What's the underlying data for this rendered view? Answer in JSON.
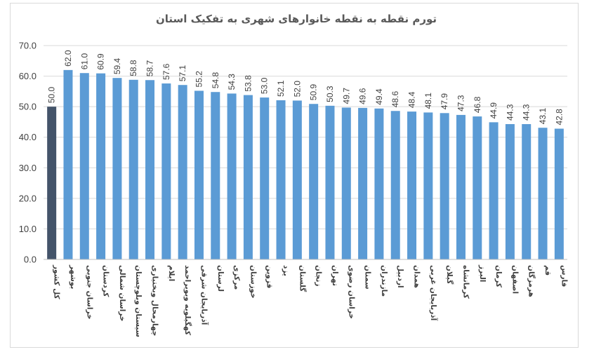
{
  "chart_data": {
    "type": "bar",
    "title": "تورم نقطه به نقطه خانوارهای شهری به تفکیک استان",
    "xlabel": "",
    "ylabel": "",
    "ylim": [
      0,
      70
    ],
    "yticks": [
      "0.0",
      "10.0",
      "20.0",
      "30.0",
      "40.0",
      "50.0",
      "60.0",
      "70.0"
    ],
    "grid": true,
    "legend": "none",
    "colors": {
      "highlight": "#44546a",
      "default": "#5b9bd5",
      "grid": "#d9d9d9"
    },
    "highlight_category": "کل کشور",
    "categories": [
      "کل کشور",
      "بوشهر",
      "خراسان جنوبی",
      "کردستان",
      "خراسان شمالی",
      "سیستان وبلوچستان",
      "چهارمحال وبختیاری",
      "ایلام",
      "کهگیلویه وبویراحمد",
      "آذربایجان شرقی",
      "لرستان",
      "مرکزی",
      "خوزستان",
      "قزوین",
      "یزد",
      "گلستان",
      "زنجان",
      "تهران",
      "خراسان رضوی",
      "سمنان",
      "مازندران",
      "اردبیل",
      "همدان",
      "آذربایجان غربی",
      "گیلان",
      "کرمانشاه",
      "البرز",
      "کرمان",
      "اصفهان",
      "هرمزگان",
      "قم",
      "فارس"
    ],
    "values": [
      50.0,
      62.0,
      61.0,
      60.9,
      59.4,
      58.8,
      58.7,
      57.6,
      57.1,
      55.2,
      54.8,
      54.3,
      53.8,
      53.0,
      52.1,
      52.0,
      50.9,
      50.3,
      49.7,
      49.6,
      49.4,
      48.6,
      48.4,
      48.1,
      47.9,
      47.3,
      46.8,
      44.9,
      44.3,
      44.3,
      43.1,
      42.8
    ],
    "labels": [
      "50.0",
      "62.0",
      "61.0",
      "60.9",
      "59.4",
      "58.8",
      "58.7",
      "57.6",
      "57.1",
      "55.2",
      "54.8",
      "54.3",
      "53.8",
      "53.0",
      "52.1",
      "52.0",
      "50.9",
      "50.3",
      "49.7",
      "49.6",
      "49.4",
      "48.6",
      "48.4",
      "48.1",
      "47.9",
      "47.3",
      "46.8",
      "44.9",
      "44.3",
      "44.3",
      "43.1",
      "42.8"
    ]
  }
}
